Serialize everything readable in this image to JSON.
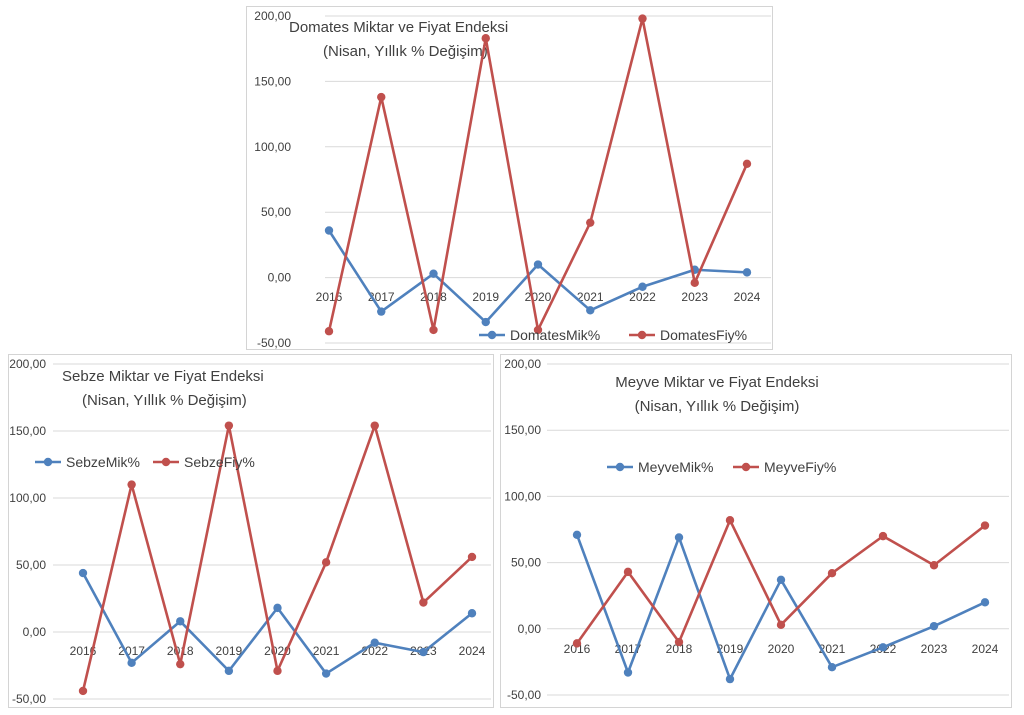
{
  "chart_data": [
    {
      "type": "line",
      "title": "Domates Miktar ve Fiyat Endeksi",
      "subtitle": "(Nisan, Yıllık % Değişim)",
      "categories": [
        "2016",
        "2017",
        "2018",
        "2019",
        "2020",
        "2021",
        "2022",
        "2023",
        "2024"
      ],
      "y_ticks": [
        "-50,00",
        "0,00",
        "50,00",
        "100,00",
        "150,00",
        "200,00"
      ],
      "ylim": [
        -50,
        200
      ],
      "grid": true,
      "legend_position": "bottom",
      "series": [
        {
          "name": "DomatesMik%",
          "color": "#4f81bd",
          "values": [
            36,
            -26,
            3,
            -34,
            10,
            -25,
            -7,
            6,
            4
          ]
        },
        {
          "name": "DomatesFiy%",
          "color": "#c0504d",
          "values": [
            -41,
            138,
            -40,
            183,
            -40,
            42,
            198,
            -4,
            87
          ]
        }
      ]
    },
    {
      "type": "line",
      "title": "Sebze Miktar ve Fiyat Endeksi",
      "subtitle": "(Nisan, Yıllık % Değişim)",
      "categories": [
        "2016",
        "2017",
        "2018",
        "2019",
        "2020",
        "2021",
        "2022",
        "2023",
        "2024"
      ],
      "y_ticks": [
        "-50,00",
        "0,00",
        "50,00",
        "100,00",
        "150,00",
        "200,00"
      ],
      "ylim": [
        -50,
        200
      ],
      "grid": true,
      "legend_position": "top-left",
      "series": [
        {
          "name": "SebzeMik%",
          "color": "#4f81bd",
          "values": [
            44,
            -23,
            8,
            -29,
            18,
            -31,
            -8,
            -15,
            14
          ]
        },
        {
          "name": "SebzeFiy%",
          "color": "#c0504d",
          "values": [
            -44,
            110,
            -24,
            154,
            -29,
            52,
            154,
            22,
            56
          ]
        }
      ]
    },
    {
      "type": "line",
      "title": "Meyve Miktar ve Fiyat Endeksi",
      "subtitle": "(Nisan, Yıllık % Değişim)",
      "categories": [
        "2016",
        "2017",
        "2018",
        "2019",
        "2020",
        "2021",
        "2022",
        "2023",
        "2024"
      ],
      "y_ticks": [
        "-50,00",
        "0,00",
        "50,00",
        "100,00",
        "150,00",
        "200,00"
      ],
      "ylim": [
        -50,
        200
      ],
      "grid": true,
      "legend_position": "top-center",
      "series": [
        {
          "name": "MeyveMik%",
          "color": "#4f81bd",
          "values": [
            71,
            -33,
            69,
            -38,
            37,
            -29,
            -14,
            2,
            20
          ]
        },
        {
          "name": "MeyveFiy%",
          "color": "#c0504d",
          "values": [
            -11,
            43,
            -10,
            82,
            3,
            42,
            70,
            48,
            78
          ]
        }
      ]
    }
  ]
}
